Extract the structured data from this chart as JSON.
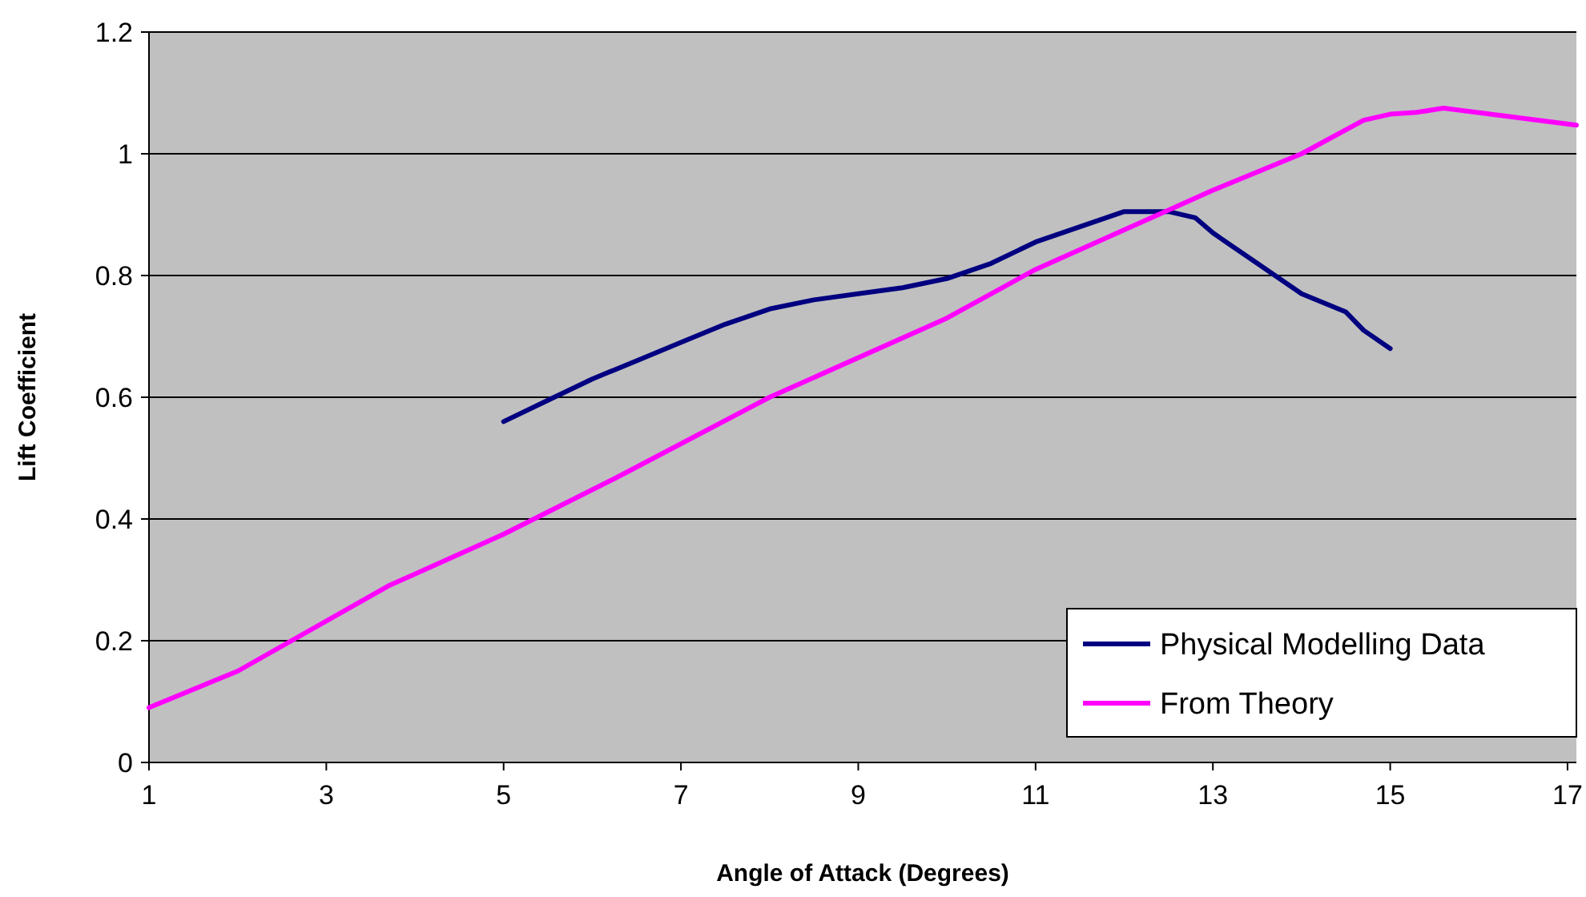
{
  "chart_data": {
    "type": "line",
    "xlabel": "Angle of Attack (Degrees)",
    "ylabel": "Lift Coefficient",
    "xlim": [
      1,
      17.1
    ],
    "xticks": [
      1,
      3,
      5,
      7,
      9,
      11,
      13,
      15,
      17
    ],
    "ylim": [
      0,
      1.2
    ],
    "yticks": [
      0,
      0.2,
      0.4,
      0.6,
      0.8,
      1,
      1.2
    ],
    "grid": "y",
    "legend": "bottom right",
    "marker": "none",
    "line_style": "solid",
    "series": [
      {
        "name": "Physical Modelling Data",
        "color": "#000080",
        "x": [
          5,
          5.5,
          6,
          6.5,
          7,
          7.5,
          8,
          8.5,
          9,
          9.5,
          10,
          10.5,
          11,
          11.5,
          12,
          12.5,
          12.8,
          13,
          13.5,
          14,
          14.5,
          14.7,
          15
        ],
        "values": [
          0.56,
          0.595,
          0.63,
          0.66,
          0.69,
          0.72,
          0.745,
          0.76,
          0.77,
          0.78,
          0.795,
          0.82,
          0.855,
          0.88,
          0.905,
          0.905,
          0.895,
          0.87,
          0.82,
          0.77,
          0.74,
          0.71,
          0.68
        ]
      },
      {
        "name": "From Theory",
        "color": "#ff00ff",
        "x": [
          1,
          2,
          3.7,
          5,
          6.3,
          8,
          10,
          11,
          12,
          13,
          14,
          14.7,
          15,
          15.3,
          15.6,
          17.1
        ],
        "values": [
          0.09,
          0.15,
          0.29,
          0.375,
          0.47,
          0.6,
          0.73,
          0.81,
          0.875,
          0.94,
          1.0,
          1.055,
          1.065,
          1.068,
          1.075,
          1.047
        ]
      }
    ]
  }
}
